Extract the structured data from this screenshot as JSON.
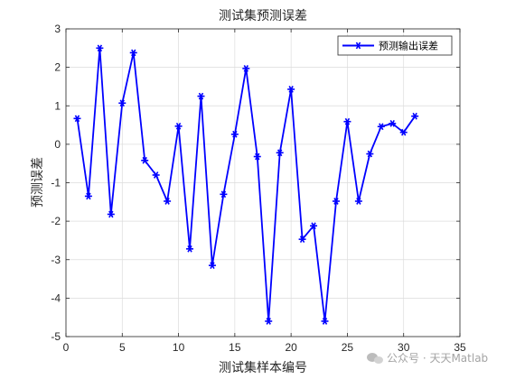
{
  "chart_data": {
    "type": "line",
    "title": "测试集预测误差",
    "xlabel": "测试集样本编号",
    "ylabel": "预测误差",
    "xlim": [
      0,
      35
    ],
    "ylim": [
      -5,
      3
    ],
    "xticks": [
      "0",
      "5",
      "10",
      "15",
      "20",
      "25",
      "30",
      "35"
    ],
    "yticks": [
      "3",
      "2",
      "1",
      "0",
      "-1",
      "-2",
      "-3",
      "-4",
      "-5"
    ],
    "grid": true,
    "legend_position": "top-right",
    "series": [
      {
        "name": "预测输出误差",
        "color": "#0000ff",
        "marker": "asterisk",
        "x": [
          1,
          2,
          3,
          4,
          5,
          6,
          7,
          8,
          9,
          10,
          11,
          12,
          13,
          14,
          15,
          16,
          17,
          18,
          19,
          20,
          21,
          22,
          23,
          24,
          25,
          26,
          27,
          28,
          29,
          30,
          31
        ],
        "y": [
          0.67,
          -1.35,
          2.5,
          -1.82,
          1.07,
          2.38,
          -0.42,
          -0.8,
          -1.48,
          0.47,
          -2.72,
          1.25,
          -3.15,
          -1.3,
          0.26,
          1.97,
          -0.32,
          -4.6,
          -0.22,
          1.43,
          -2.47,
          -2.12,
          -4.6,
          -1.48,
          0.59,
          -1.48,
          -0.25,
          0.46,
          0.54,
          0.31,
          0.73
        ]
      }
    ]
  },
  "watermark": {
    "icon": "wechat-icon",
    "text": "公众号 · 天天Matlab"
  }
}
